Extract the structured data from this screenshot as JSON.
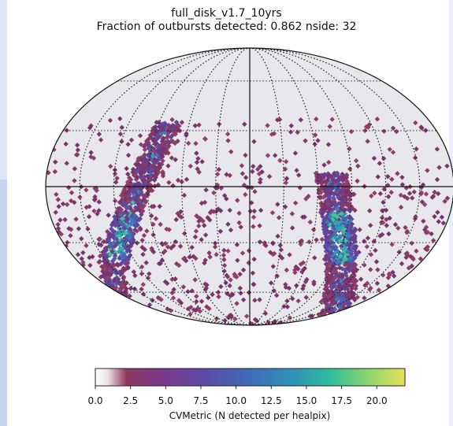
{
  "chart_data": {
    "type": "heatmap",
    "projection": "mollweide",
    "title": "full_disk_v1.7_10yrs",
    "subtitle": "Fraction of outbursts detected: 0.862 nside: 32",
    "colorbar": {
      "label": "CVMetric (N detected per healpix)",
      "min": 0.0,
      "max": 22.0,
      "ticks": [
        "0.0",
        "2.5",
        "5.0",
        "7.5",
        "10.0",
        "12.5",
        "15.0",
        "17.5",
        "20.0"
      ],
      "tick_values": [
        0,
        2.5,
        5,
        7.5,
        10,
        12.5,
        15,
        17.5,
        20
      ],
      "colormap": "viridis"
    },
    "graticule": true,
    "sky_background": "#e8e8ec"
  }
}
